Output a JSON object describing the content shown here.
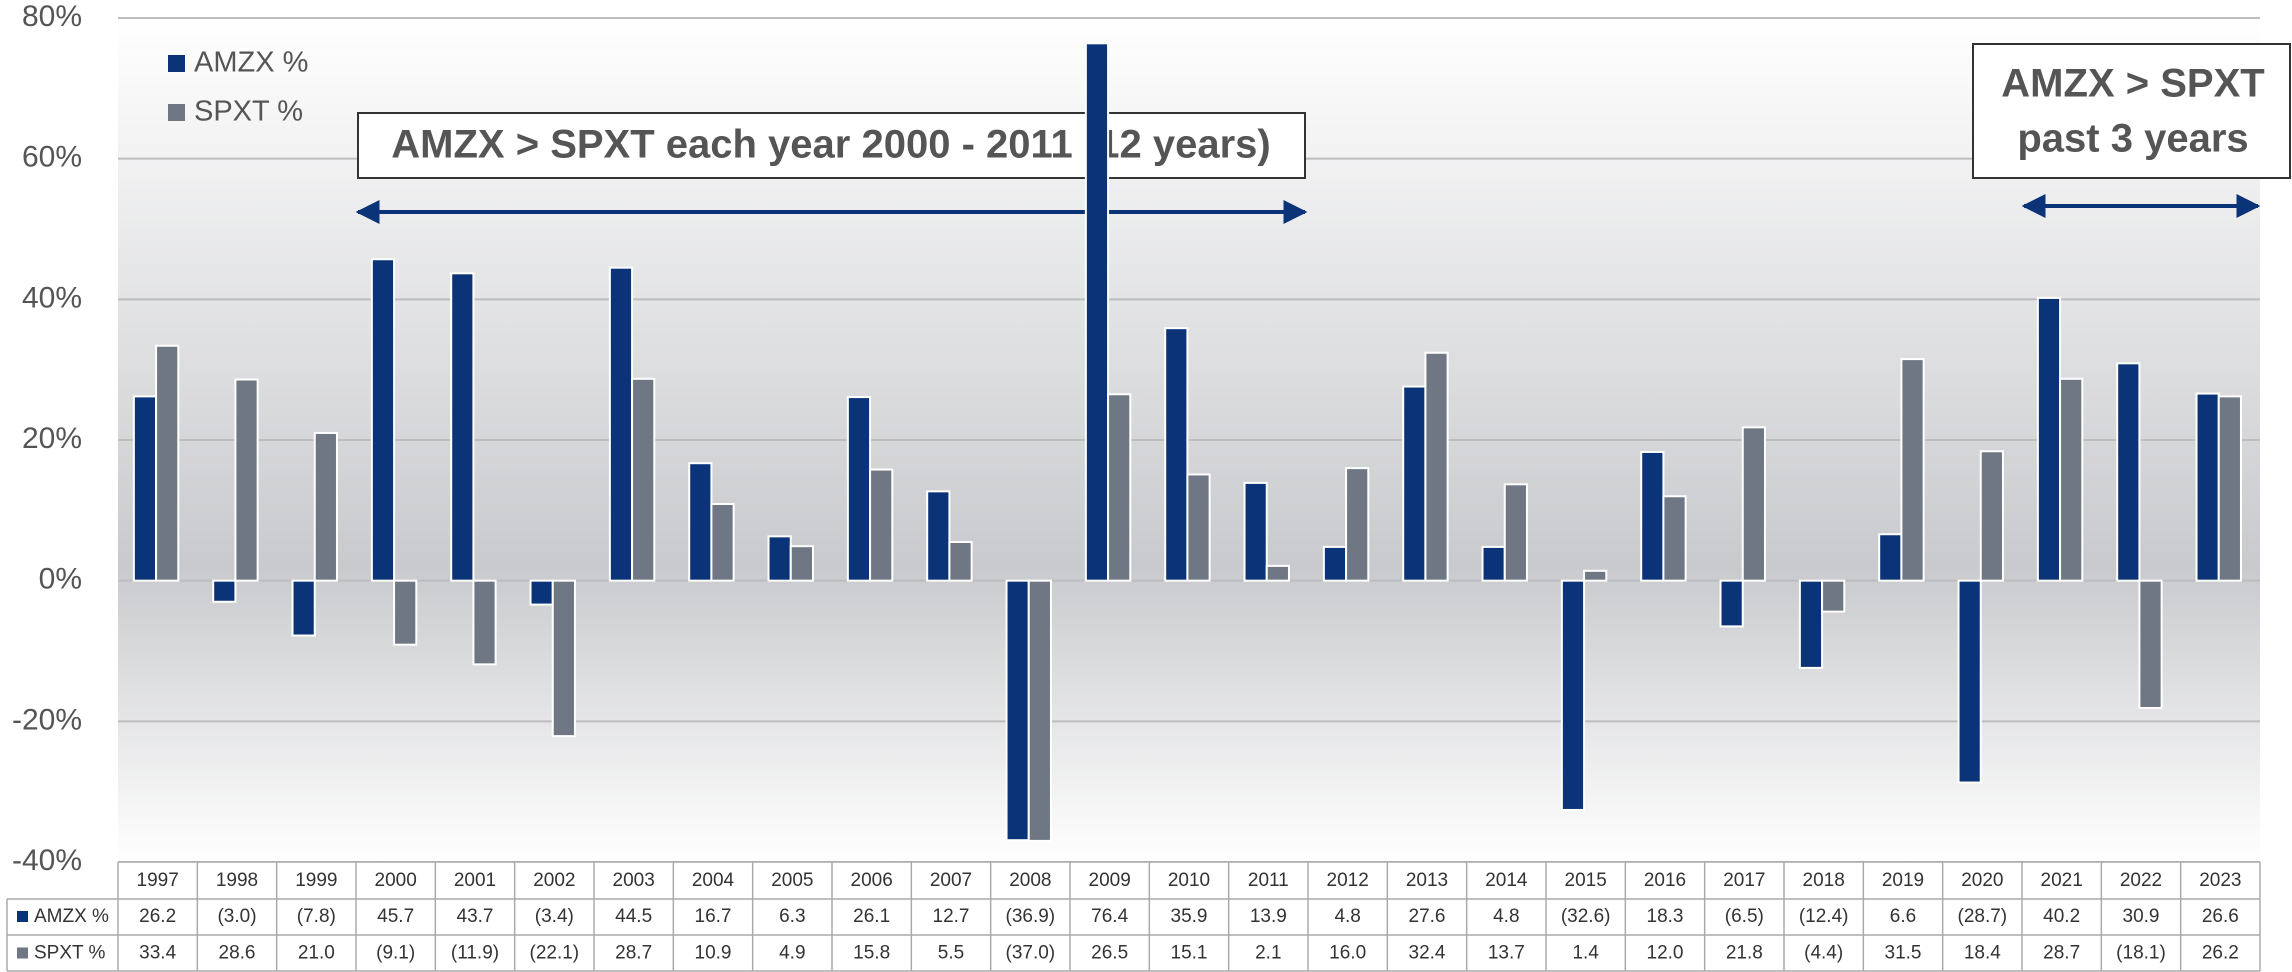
{
  "chart_data": {
    "type": "bar",
    "categories": [
      "1997",
      "1998",
      "1999",
      "2000",
      "2001",
      "2002",
      "2003",
      "2004",
      "2005",
      "2006",
      "2007",
      "2008",
      "2009",
      "2010",
      "2011",
      "2012",
      "2013",
      "2014",
      "2015",
      "2016",
      "2017",
      "2018",
      "2019",
      "2020",
      "2021",
      "2022",
      "2023"
    ],
    "series": [
      {
        "name": "AMZX %",
        "color": "#0b3378",
        "values": [
          26.2,
          -3.0,
          -7.8,
          45.7,
          43.7,
          -3.4,
          44.5,
          16.7,
          6.3,
          26.1,
          12.7,
          -36.9,
          76.4,
          35.9,
          13.9,
          4.8,
          27.6,
          4.8,
          -32.6,
          18.3,
          -6.5,
          -12.4,
          6.6,
          -28.7,
          40.2,
          30.9,
          26.6
        ],
        "value_labels": [
          "26.2",
          "(3.0)",
          "(7.8)",
          "45.7",
          "43.7",
          "(3.4)",
          "44.5",
          "16.7",
          "6.3",
          "26.1",
          "12.7",
          "(36.9)",
          "76.4",
          "35.9",
          "13.9",
          "4.8",
          "27.6",
          "4.8",
          "(32.6)",
          "18.3",
          "(6.5)",
          "(12.4)",
          "6.6",
          "(28.7)",
          "40.2",
          "30.9",
          "26.6"
        ]
      },
      {
        "name": "SPXT %",
        "color": "#6e7783",
        "values": [
          33.4,
          28.6,
          21.0,
          -9.1,
          -11.9,
          -22.1,
          28.7,
          10.9,
          4.9,
          15.8,
          5.5,
          -37.0,
          26.5,
          15.1,
          2.1,
          16.0,
          32.4,
          13.7,
          1.4,
          12.0,
          21.8,
          -4.4,
          31.5,
          18.4,
          28.7,
          -18.1,
          26.2
        ],
        "value_labels": [
          "33.4",
          "28.6",
          "21.0",
          "(9.1)",
          "(11.9)",
          "(22.1)",
          "28.7",
          "10.9",
          "4.9",
          "15.8",
          "5.5",
          "(37.0)",
          "26.5",
          "15.1",
          "2.1",
          "16.0",
          "32.4",
          "13.7",
          "1.4",
          "12.0",
          "21.8",
          "(4.4)",
          "31.5",
          "18.4",
          "28.7",
          "(18.1)",
          "26.2"
        ]
      }
    ],
    "ylim": [
      -40,
      80
    ],
    "yticks": [
      {
        "value": -40,
        "label": "-40%"
      },
      {
        "value": -20,
        "label": "-20%"
      },
      {
        "value": 0,
        "label": "0%"
      },
      {
        "value": 20,
        "label": "20%"
      },
      {
        "value": 40,
        "label": "40%"
      },
      {
        "value": 60,
        "label": "60%"
      },
      {
        "value": 80,
        "label": "80%"
      }
    ],
    "grid": true,
    "legend": "top-left",
    "annotations": [
      "AMZX > SPXT each year 2000 - 2011 (12 years)",
      "AMZX > SPXT",
      "past 3 years"
    ]
  }
}
